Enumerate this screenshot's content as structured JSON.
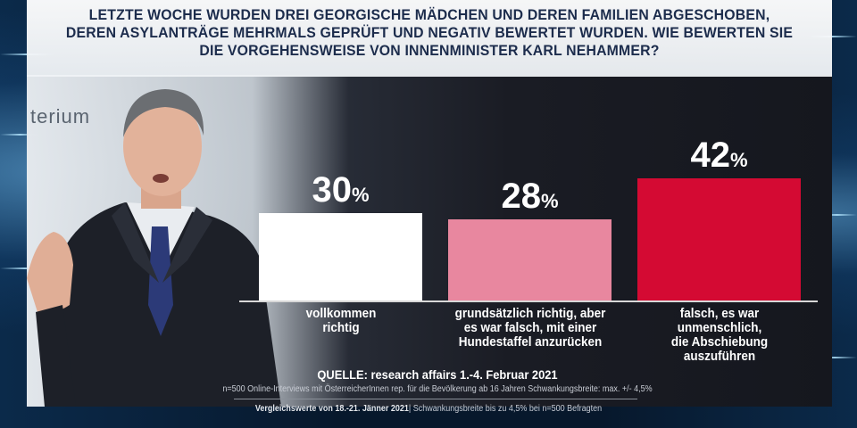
{
  "title": {
    "line1": "LETZTE WOCHE WURDEN DREI GEORGISCHE MÄDCHEN UND DEREN FAMILIEN ABGESCHOBEN,",
    "line2": "DEREN ASYLANTRÄGE MEHRMALS GEPRÜFT UND NEGATIV BEWERTET WURDEN. WIE BEWERTEN SIE",
    "line3": "DIE VORGEHENSWEISE VON INNENMINISTER KARL NEHAMMER?"
  },
  "photo": {
    "wall_text": "terium"
  },
  "chart_data": {
    "type": "bar",
    "title": "LETZTE WOCHE WURDEN DREI GEORGISCHE MÄDCHEN UND DEREN FAMILIEN ABGESCHOBEN, DEREN ASYLANTRÄGE MEHRMALS GEPRÜFT UND NEGATIV BEWERTET WURDEN. WIE BEWERTEN SIE DIE VORGEHENSWEISE VON INNENMINISTER KARL NEHAMMER?",
    "unit": "%",
    "ylim": [
      0,
      42
    ],
    "categories": [
      "vollkommen richtig",
      "grundsätzlich richtig, aber es war falsch, mit einer Hundestaffel anzurücken",
      "falsch, es war unmenschlich, die Abschiebung auszuführen"
    ],
    "category_lines": [
      [
        "vollkommen",
        "richtig"
      ],
      [
        "grundsätzlich richtig, aber",
        "es war falsch, mit einer",
        "Hundestaffel anzurücken"
      ],
      [
        "falsch, es war unmenschlich,",
        "die Abschiebung",
        "auszuführen"
      ]
    ],
    "values": [
      30,
      28,
      42
    ],
    "colors": [
      "#ffffff",
      "#e8879f",
      "#d40a33"
    ]
  },
  "source": {
    "main": "QUELLE: research affairs 1.-4. Februar 2021",
    "detail": "n=500 Online-Interviews mit ÖsterreicherInnen rep. für die Bevölkerung ab 16 Jahren  Schwankungsbreite: max. +/- 4,5%",
    "comparison_bold": "Vergleichswerte von 18.-21. Jänner 2021",
    "comparison_rest": "| Schwankungsbreite bis zu 4,5% bei n=500 Befragten"
  }
}
